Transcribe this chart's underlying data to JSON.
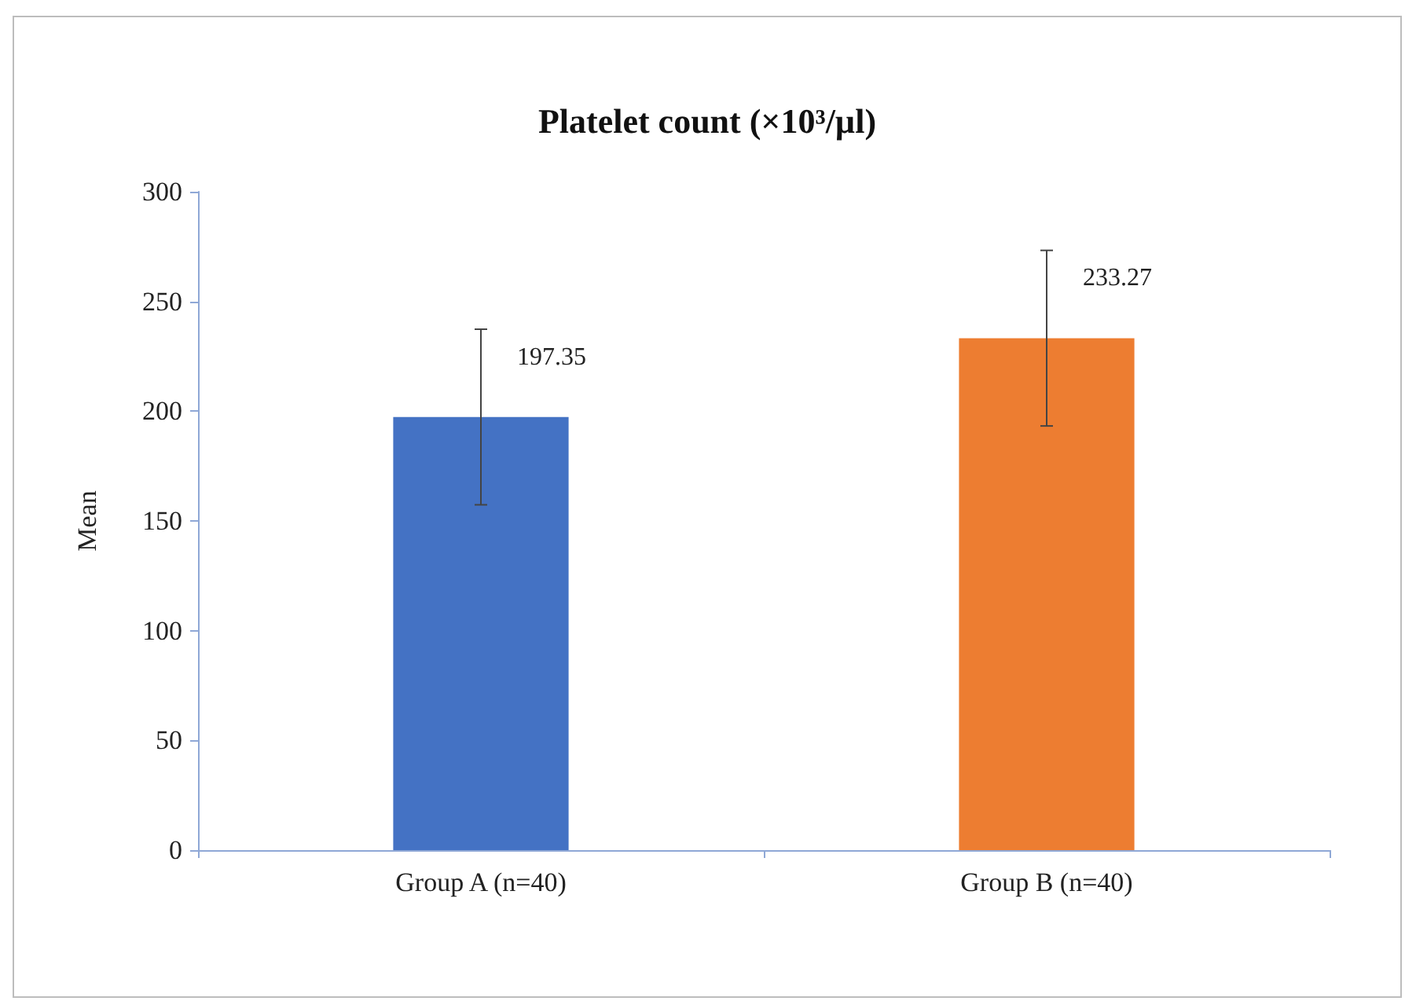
{
  "chart_data": {
    "type": "bar",
    "title": "Platelet count (×10³/µl)",
    "ylabel": "Mean",
    "categories": [
      "Group A (n=40)",
      "Group B (n=40)"
    ],
    "values": [
      197.35,
      233.27
    ],
    "colors": [
      "#4472c4",
      "#ed7d31"
    ],
    "errors": [
      40,
      40
    ],
    "data_labels": true,
    "ylim": [
      0,
      300
    ],
    "yticks": [
      0,
      50,
      100,
      150,
      200,
      250,
      300
    ],
    "grid": false
  }
}
